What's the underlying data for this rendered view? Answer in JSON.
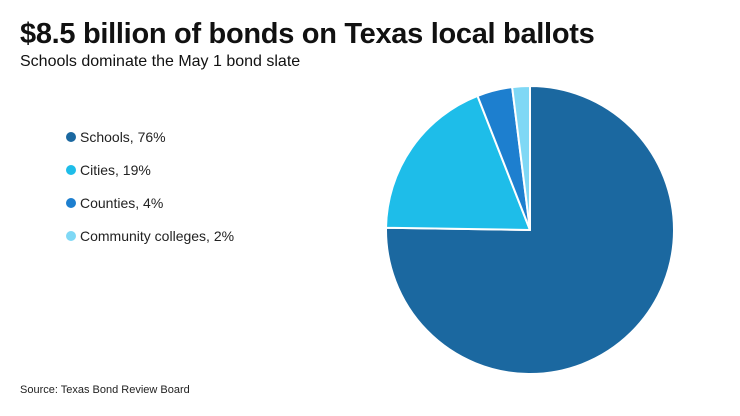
{
  "header": {
    "title": "$8.5 billion of bonds on Texas local ballots",
    "subtitle": "Schools dominate the May 1 bond slate"
  },
  "legend": {
    "items": [
      {
        "label": "Schools, 76%",
        "color": "#1b68a0"
      },
      {
        "label": "Cities, 19%",
        "color": "#1ebde9"
      },
      {
        "label": "Counties, 4%",
        "color": "#1d7fcf"
      },
      {
        "label": "Community colleges, 2%",
        "color": "#7fd8f5"
      }
    ]
  },
  "chart_data": {
    "type": "pie",
    "title": "$8.5 billion of bonds on Texas local ballots",
    "subtitle": "Schools dominate the May 1 bond slate",
    "legend_position": "left",
    "slices": [
      {
        "label": "Schools",
        "value": 76,
        "color": "#1b68a0"
      },
      {
        "label": "Cities",
        "value": 19,
        "color": "#1ebde9"
      },
      {
        "label": "Counties",
        "value": 4,
        "color": "#1d7fcf"
      },
      {
        "label": "Community colleges",
        "value": 2,
        "color": "#7fd8f5"
      }
    ]
  },
  "footer": {
    "source": "Source: Texas Bond Review Board"
  }
}
